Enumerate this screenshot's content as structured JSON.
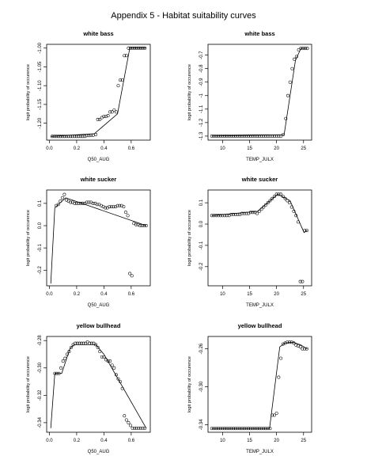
{
  "page": {
    "title": "Appendix 5 - Habitat suitability curves"
  },
  "chart_data": [
    {
      "type": "scatter",
      "title": "white bass",
      "xlabel": "Q50_AUG",
      "ylabel": "logit probability of occurence",
      "xlim": [
        -0.02,
        0.74
      ],
      "ylim": [
        -1.245,
        -0.99
      ],
      "xticks": [
        0.0,
        0.2,
        0.4,
        0.6
      ],
      "xtick_labels": [
        "0.0",
        "0.2",
        "0.4",
        "0.6"
      ],
      "yticks": [
        -1.2,
        -1.15,
        -1.1,
        -1.05,
        -1.0
      ],
      "ytick_labels": [
        "-1.20",
        "-1.15",
        "-1.10",
        "-1.05",
        "-1.00"
      ],
      "grid": false,
      "series": [
        {
          "kind": "points",
          "x": [
            0.02,
            0.035,
            0.05,
            0.065,
            0.08,
            0.095,
            0.11,
            0.125,
            0.14,
            0.155,
            0.17,
            0.185,
            0.2,
            0.215,
            0.23,
            0.245,
            0.26,
            0.275,
            0.29,
            0.305,
            0.32,
            0.34,
            0.355,
            0.37,
            0.385,
            0.4,
            0.415,
            0.43,
            0.445,
            0.46,
            0.475,
            0.49,
            0.505,
            0.52,
            0.535,
            0.55,
            0.565,
            0.58,
            0.595,
            0.61,
            0.625,
            0.64,
            0.655,
            0.67,
            0.685,
            0.7
          ],
          "y": [
            -1.235,
            -1.235,
            -1.235,
            -1.235,
            -1.235,
            -1.235,
            -1.235,
            -1.235,
            -1.235,
            -1.235,
            -1.235,
            -1.235,
            -1.235,
            -1.235,
            -1.235,
            -1.235,
            -1.235,
            -1.233,
            -1.233,
            -1.232,
            -1.232,
            -1.23,
            -1.19,
            -1.19,
            -1.185,
            -1.182,
            -1.182,
            -1.18,
            -1.17,
            -1.17,
            -1.165,
            -1.17,
            -1.1,
            -1.085,
            -1.085,
            -1.02,
            -1.02,
            -1.0,
            -1.0,
            -1.0,
            -1.0,
            -1.0,
            -1.0,
            -1.0,
            -1.0,
            -1.0
          ]
        },
        {
          "kind": "line",
          "x": [
            0.01,
            0.33,
            0.5,
            0.59,
            0.71
          ],
          "y": [
            -1.235,
            -1.228,
            -1.175,
            -1.0,
            -1.0
          ]
        }
      ]
    },
    {
      "type": "scatter",
      "title": "white bass",
      "xlabel": "TEMP_JULX",
      "ylabel": "logit probability of occurence",
      "xlim": [
        7.3,
        26.5
      ],
      "ylim": [
        -1.33,
        -0.62
      ],
      "xticks": [
        10,
        15,
        20,
        25
      ],
      "xtick_labels": [
        "10",
        "15",
        "20",
        "25"
      ],
      "yticks": [
        -1.3,
        -1.2,
        -1.1,
        -1.0,
        -0.9,
        -0.8,
        -0.7
      ],
      "ytick_labels": [
        "-1.3",
        "-1.2",
        "-1.1",
        "-1",
        "-0.9",
        "-0.8",
        "-0.7"
      ],
      "grid": false,
      "series": [
        {
          "kind": "points",
          "x": [
            8,
            8.4,
            8.8,
            9.2,
            9.6,
            10,
            10.4,
            10.8,
            11.2,
            11.6,
            12,
            12.4,
            12.8,
            13.2,
            13.6,
            14,
            14.4,
            14.8,
            15.2,
            15.6,
            16,
            16.4,
            16.8,
            17.2,
            17.6,
            18,
            18.4,
            18.8,
            19.2,
            19.6,
            20,
            20.4,
            20.8,
            21.2,
            21.7,
            22.1,
            22.5,
            22.9,
            23.3,
            23.7,
            24.1,
            24.5,
            24.9,
            25.3,
            25.7
          ],
          "y": [
            -1.3,
            -1.3,
            -1.3,
            -1.3,
            -1.3,
            -1.3,
            -1.3,
            -1.3,
            -1.3,
            -1.3,
            -1.3,
            -1.3,
            -1.3,
            -1.3,
            -1.3,
            -1.3,
            -1.3,
            -1.3,
            -1.3,
            -1.3,
            -1.3,
            -1.3,
            -1.3,
            -1.3,
            -1.3,
            -1.3,
            -1.3,
            -1.3,
            -1.3,
            -1.3,
            -1.3,
            -1.3,
            -1.3,
            -1.29,
            -1.17,
            -1.0,
            -0.9,
            -0.8,
            -0.73,
            -0.71,
            -0.66,
            -0.65,
            -0.65,
            -0.65,
            -0.65
          ]
        },
        {
          "kind": "line",
          "x": [
            8,
            21.4,
            23.5,
            24.5,
            25.7
          ],
          "y": [
            -1.3,
            -1.29,
            -0.74,
            -0.65,
            -0.65
          ]
        }
      ]
    },
    {
      "type": "scatter",
      "title": "white sucker",
      "xlabel": "Q50_AUG",
      "ylabel": "logit probability of occurence",
      "xlim": [
        -0.02,
        0.74
      ],
      "ylim": [
        -0.27,
        0.16
      ],
      "xticks": [
        0.0,
        0.2,
        0.4,
        0.6
      ],
      "xtick_labels": [
        "0.0",
        "0.2",
        "0.4",
        "0.6"
      ],
      "yticks": [
        -0.2,
        -0.1,
        0.0,
        0.1
      ],
      "ytick_labels": [
        "-0.2",
        "-0.1",
        "0.0",
        "0.1"
      ],
      "grid": false,
      "series": [
        {
          "kind": "points",
          "x": [
            0.05,
            0.065,
            0.08,
            0.095,
            0.11,
            0.125,
            0.14,
            0.155,
            0.17,
            0.185,
            0.2,
            0.215,
            0.23,
            0.245,
            0.26,
            0.275,
            0.29,
            0.305,
            0.32,
            0.335,
            0.35,
            0.365,
            0.38,
            0.395,
            0.41,
            0.425,
            0.44,
            0.455,
            0.47,
            0.485,
            0.5,
            0.515,
            0.53,
            0.545,
            0.56,
            0.575,
            0.59,
            0.605,
            0.62,
            0.635,
            0.65,
            0.665,
            0.68,
            0.695,
            0.71
          ],
          "y": [
            0.09,
            0.095,
            0.11,
            0.125,
            0.14,
            0.115,
            0.11,
            0.105,
            0.105,
            0.1,
            0.1,
            0.1,
            0.1,
            0.1,
            0.1,
            0.105,
            0.105,
            0.105,
            0.1,
            0.1,
            0.095,
            0.095,
            0.09,
            0.085,
            0.08,
            0.08,
            0.085,
            0.085,
            0.085,
            0.085,
            0.09,
            0.09,
            0.09,
            0.085,
            0.06,
            0.045,
            -0.215,
            -0.225,
            0.01,
            0.005,
            0.005,
            0.0,
            0.0,
            0.0,
            0.0
          ]
        },
        {
          "kind": "line",
          "x": [
            0.01,
            0.04,
            0.12,
            0.71
          ],
          "y": [
            -0.26,
            0.08,
            0.125,
            0.0
          ]
        }
      ]
    },
    {
      "type": "scatter",
      "title": "white sucker",
      "xlabel": "TEMP_JULX",
      "ylabel": "logit probability of occurence",
      "xlim": [
        7.3,
        26.5
      ],
      "ylim": [
        -0.29,
        0.16
      ],
      "xticks": [
        10,
        15,
        20,
        25
      ],
      "xtick_labels": [
        "10",
        "15",
        "20",
        "25"
      ],
      "yticks": [
        -0.2,
        -0.1,
        0.0,
        0.1
      ],
      "ytick_labels": [
        "-0.2",
        "-0.1",
        "0.0",
        "0.1"
      ],
      "grid": false,
      "series": [
        {
          "kind": "points",
          "x": [
            8,
            8.4,
            8.8,
            9.2,
            9.6,
            10,
            10.4,
            10.8,
            11.2,
            11.6,
            12,
            12.4,
            12.8,
            13.2,
            13.6,
            14,
            14.4,
            14.8,
            15.2,
            15.6,
            16,
            16.4,
            16.8,
            17.2,
            17.6,
            18,
            18.4,
            18.8,
            19.2,
            19.6,
            20,
            20.4,
            20.8,
            21.2,
            21.6,
            22,
            22.4,
            22.8,
            23.2,
            23.6,
            24,
            24.4,
            24.8,
            25.2,
            25.6
          ],
          "y": [
            0.04,
            0.04,
            0.04,
            0.04,
            0.04,
            0.04,
            0.04,
            0.04,
            0.04,
            0.045,
            0.045,
            0.045,
            0.045,
            0.045,
            0.05,
            0.05,
            0.05,
            0.05,
            0.055,
            0.055,
            0.055,
            0.05,
            0.06,
            0.07,
            0.08,
            0.09,
            0.1,
            0.11,
            0.12,
            0.13,
            0.14,
            0.14,
            0.14,
            0.13,
            0.12,
            0.11,
            0.1,
            0.08,
            0.06,
            0.04,
            0.01,
            -0.27,
            -0.27,
            -0.03,
            -0.03
          ]
        },
        {
          "kind": "line",
          "x": [
            8,
            16.5,
            20.2,
            22.5,
            25.1,
            25.7
          ],
          "y": [
            0.04,
            0.06,
            0.14,
            0.11,
            -0.04,
            -0.03
          ]
        }
      ]
    },
    {
      "type": "scatter",
      "title": "yellow bullhead",
      "xlabel": "Q50_AUG",
      "ylabel": "logit probability of occurence",
      "xlim": [
        -0.02,
        0.74
      ],
      "ylim": [
        -0.347,
        -0.277
      ],
      "xticks": [
        0.0,
        0.2,
        0.4,
        0.6
      ],
      "xtick_labels": [
        "0.0",
        "0.2",
        "0.4",
        "0.6"
      ],
      "yticks": [
        -0.34,
        -0.32,
        -0.3,
        -0.28
      ],
      "ytick_labels": [
        "-0.34",
        "-0.32",
        "-0.30",
        "-0.28"
      ],
      "grid": false,
      "series": [
        {
          "kind": "points",
          "x": [
            0.04,
            0.055,
            0.07,
            0.085,
            0.1,
            0.115,
            0.13,
            0.145,
            0.16,
            0.175,
            0.19,
            0.205,
            0.22,
            0.235,
            0.25,
            0.265,
            0.28,
            0.295,
            0.31,
            0.325,
            0.34,
            0.355,
            0.37,
            0.385,
            0.4,
            0.415,
            0.43,
            0.445,
            0.46,
            0.475,
            0.49,
            0.505,
            0.52,
            0.535,
            0.55,
            0.565,
            0.58,
            0.595,
            0.61,
            0.625,
            0.64,
            0.655,
            0.67,
            0.685,
            0.7
          ],
          "y": [
            -0.304,
            -0.304,
            -0.304,
            -0.3,
            -0.295,
            -0.293,
            -0.29,
            -0.288,
            -0.285,
            -0.283,
            -0.282,
            -0.282,
            -0.282,
            -0.282,
            -0.282,
            -0.282,
            -0.281,
            -0.282,
            -0.282,
            -0.282,
            -0.283,
            -0.285,
            -0.288,
            -0.292,
            -0.292,
            -0.294,
            -0.295,
            -0.295,
            -0.298,
            -0.3,
            -0.305,
            -0.308,
            -0.31,
            -0.315,
            -0.335,
            -0.338,
            -0.34,
            -0.342,
            -0.344,
            -0.344,
            -0.344,
            -0.344,
            -0.344,
            -0.344,
            -0.344
          ]
        },
        {
          "kind": "line",
          "x": [
            0.01,
            0.04,
            0.09,
            0.15,
            0.18,
            0.34,
            0.4,
            0.71
          ],
          "y": [
            -0.344,
            -0.304,
            -0.304,
            -0.286,
            -0.283,
            -0.283,
            -0.29,
            -0.344
          ]
        }
      ]
    },
    {
      "type": "scatter",
      "title": "yellow bullhead",
      "xlabel": "TEMP_JULX",
      "ylabel": "logit probability of occurence",
      "xlim": [
        7.3,
        26.5
      ],
      "ylim": [
        -0.348,
        -0.247
      ],
      "xticks": [
        10,
        15,
        20,
        25
      ],
      "xtick_labels": [
        "10",
        "15",
        "20",
        "25"
      ],
      "yticks": [
        -0.34,
        -0.3,
        -0.26
      ],
      "ytick_labels": [
        "-0.34",
        "-0.30",
        "-0.26"
      ],
      "grid": false,
      "series": [
        {
          "kind": "points",
          "x": [
            8,
            8.4,
            8.8,
            9.2,
            9.6,
            10,
            10.4,
            10.8,
            11.2,
            11.6,
            12,
            12.4,
            12.8,
            13.2,
            13.6,
            14,
            14.4,
            14.8,
            15.2,
            15.6,
            16,
            16.4,
            16.8,
            17.2,
            17.6,
            18,
            18.4,
            18.8,
            19.2,
            19.6,
            20,
            20.4,
            20.8,
            21.2,
            21.6,
            22,
            22.4,
            22.8,
            23.2,
            23.6,
            24,
            24.4,
            24.8,
            25.2,
            25.6
          ],
          "y": [
            -0.344,
            -0.344,
            -0.344,
            -0.344,
            -0.344,
            -0.344,
            -0.344,
            -0.344,
            -0.344,
            -0.344,
            -0.344,
            -0.344,
            -0.344,
            -0.344,
            -0.344,
            -0.344,
            -0.344,
            -0.344,
            -0.344,
            -0.344,
            -0.344,
            -0.344,
            -0.344,
            -0.344,
            -0.344,
            -0.344,
            -0.344,
            -0.344,
            -0.33,
            -0.33,
            -0.328,
            -0.29,
            -0.27,
            -0.255,
            -0.254,
            -0.253,
            -0.253,
            -0.253,
            -0.254,
            -0.256,
            -0.257,
            -0.258,
            -0.26,
            -0.26,
            -0.26
          ]
        },
        {
          "kind": "line",
          "x": [
            8,
            18.7,
            20.6,
            21.5,
            23,
            24.5,
            25.7
          ],
          "y": [
            -0.344,
            -0.344,
            -0.258,
            -0.254,
            -0.253,
            -0.256,
            -0.26
          ]
        }
      ]
    }
  ]
}
